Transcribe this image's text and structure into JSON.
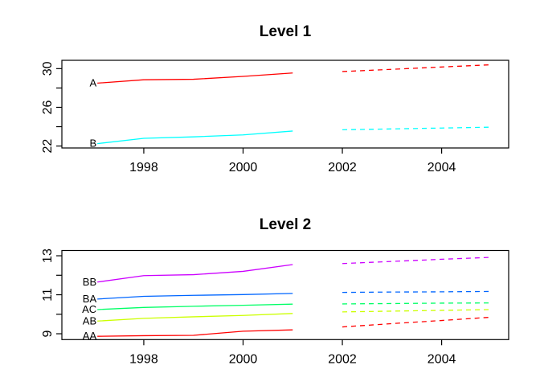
{
  "figure": {
    "background": "#ffffff",
    "axis_color": "#000000",
    "text_color": "#000000"
  },
  "chart_data": [
    {
      "type": "line",
      "title": "Level 1",
      "x": [
        1997,
        1998,
        1999,
        2000,
        2001
      ],
      "forecast_x": [
        2002,
        2003,
        2004,
        2005
      ],
      "xlim": [
        1996.35,
        2005.35
      ],
      "ylim": [
        21.8,
        30.86
      ],
      "x_ticks": [
        1998,
        2000,
        2002,
        2004
      ],
      "x_tick_labels": [
        "1998",
        "2000",
        "2002",
        "2004"
      ],
      "y_ticks": [
        22,
        24,
        26,
        28,
        30
      ],
      "y_labeled_ticks": [
        22,
        26,
        30
      ],
      "y_tick_labels": [
        "22",
        "26",
        "30"
      ],
      "grid": "off",
      "legend": "inline-left-labels",
      "forecast_style": "dashed",
      "series": [
        {
          "name": "A",
          "color": "#FF0000",
          "values": [
            28.5,
            28.85,
            28.9,
            29.2,
            29.55
          ],
          "forecast": [
            29.7,
            29.93,
            30.17,
            30.4
          ]
        },
        {
          "name": "B",
          "color": "#00FFFF",
          "values": [
            22.25,
            22.8,
            22.95,
            23.15,
            23.55
          ],
          "forecast": [
            23.68,
            23.77,
            23.86,
            23.95
          ]
        }
      ]
    },
    {
      "type": "line",
      "title": "Level 2",
      "x": [
        1997,
        1998,
        1999,
        2000,
        2001
      ],
      "forecast_x": [
        2002,
        2003,
        2004,
        2005
      ],
      "xlim": [
        1996.35,
        2005.35
      ],
      "ylim": [
        8.7,
        13.27
      ],
      "x_ticks": [
        1998,
        2000,
        2002,
        2004
      ],
      "x_tick_labels": [
        "1998",
        "2000",
        "2002",
        "2004"
      ],
      "y_ticks": [
        9,
        10,
        11,
        12,
        13
      ],
      "y_labeled_ticks": [
        9,
        11,
        13
      ],
      "y_tick_labels": [
        "9",
        "11",
        "13"
      ],
      "grid": "off",
      "legend": "inline-left-labels",
      "forecast_style": "dashed",
      "series": [
        {
          "name": "BB",
          "color": "#CC00FF",
          "values": [
            11.65,
            11.98,
            12.03,
            12.2,
            12.55
          ],
          "forecast": [
            12.6,
            12.71,
            12.82,
            12.92
          ]
        },
        {
          "name": "BA",
          "color": "#0066FF",
          "values": [
            10.78,
            10.92,
            10.97,
            11.01,
            11.07
          ],
          "forecast": [
            11.12,
            11.14,
            11.15,
            11.17
          ]
        },
        {
          "name": "AC",
          "color": "#00FF66",
          "values": [
            10.24,
            10.35,
            10.41,
            10.46,
            10.52
          ],
          "forecast": [
            10.53,
            10.55,
            10.57,
            10.58
          ]
        },
        {
          "name": "AB",
          "color": "#CCFF00",
          "values": [
            9.65,
            9.79,
            9.87,
            9.94,
            10.04
          ],
          "forecast": [
            10.12,
            10.16,
            10.2,
            10.24
          ]
        },
        {
          "name": "AA",
          "color": "#FF0000",
          "values": [
            8.87,
            8.9,
            8.92,
            9.13,
            9.2
          ],
          "forecast": [
            9.35,
            9.52,
            9.68,
            9.85
          ]
        }
      ]
    }
  ]
}
